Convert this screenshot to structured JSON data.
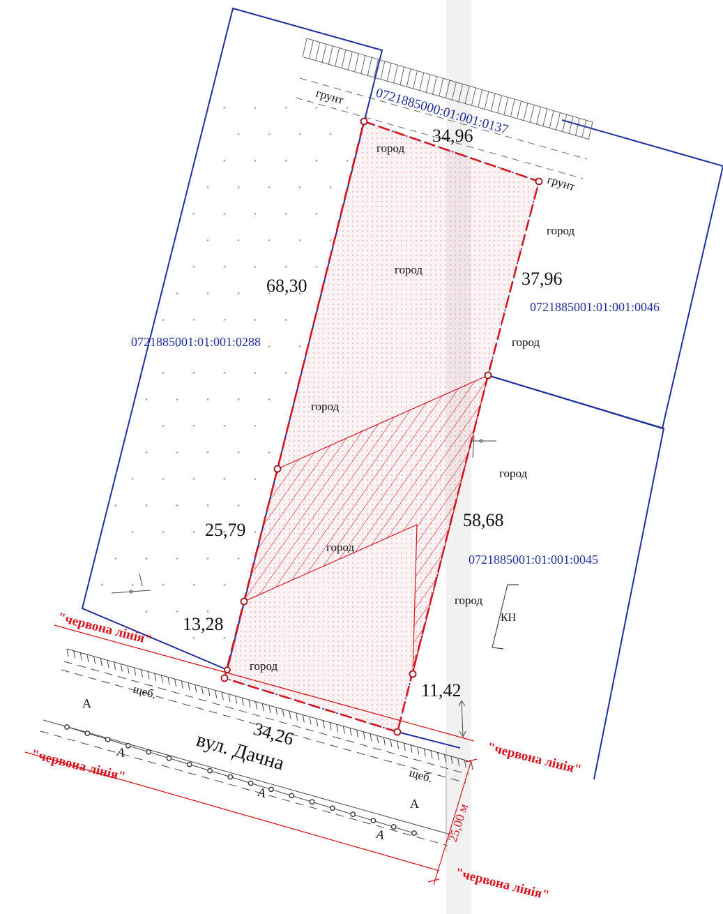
{
  "parcels": {
    "subject": "0721885000:01:001:0137",
    "west": "0721885001:01:001:0288",
    "north_east": "0721885001:01:001:0046",
    "east": "0721885001:01:001:0045"
  },
  "dimensions": {
    "north": "34,96",
    "west_upper": "68,30",
    "west_middle": "25,79",
    "west_lower": "13,28",
    "south": "34,26",
    "east_upper": "37,96",
    "east_middle": "58,68",
    "east_lower": "11,42"
  },
  "land_use": {
    "garden": "город",
    "soil": "грунт",
    "gravel": "щеб.",
    "asphalt": "А",
    "building": "КН"
  },
  "street": {
    "name": "вул. Дачна",
    "width": "25,00 м"
  },
  "red_line": "\"червона лінія\"",
  "colors": {
    "boundary_red": "#d4141e",
    "parcel_blue": "#1f2f9c",
    "ink": "#111111"
  }
}
